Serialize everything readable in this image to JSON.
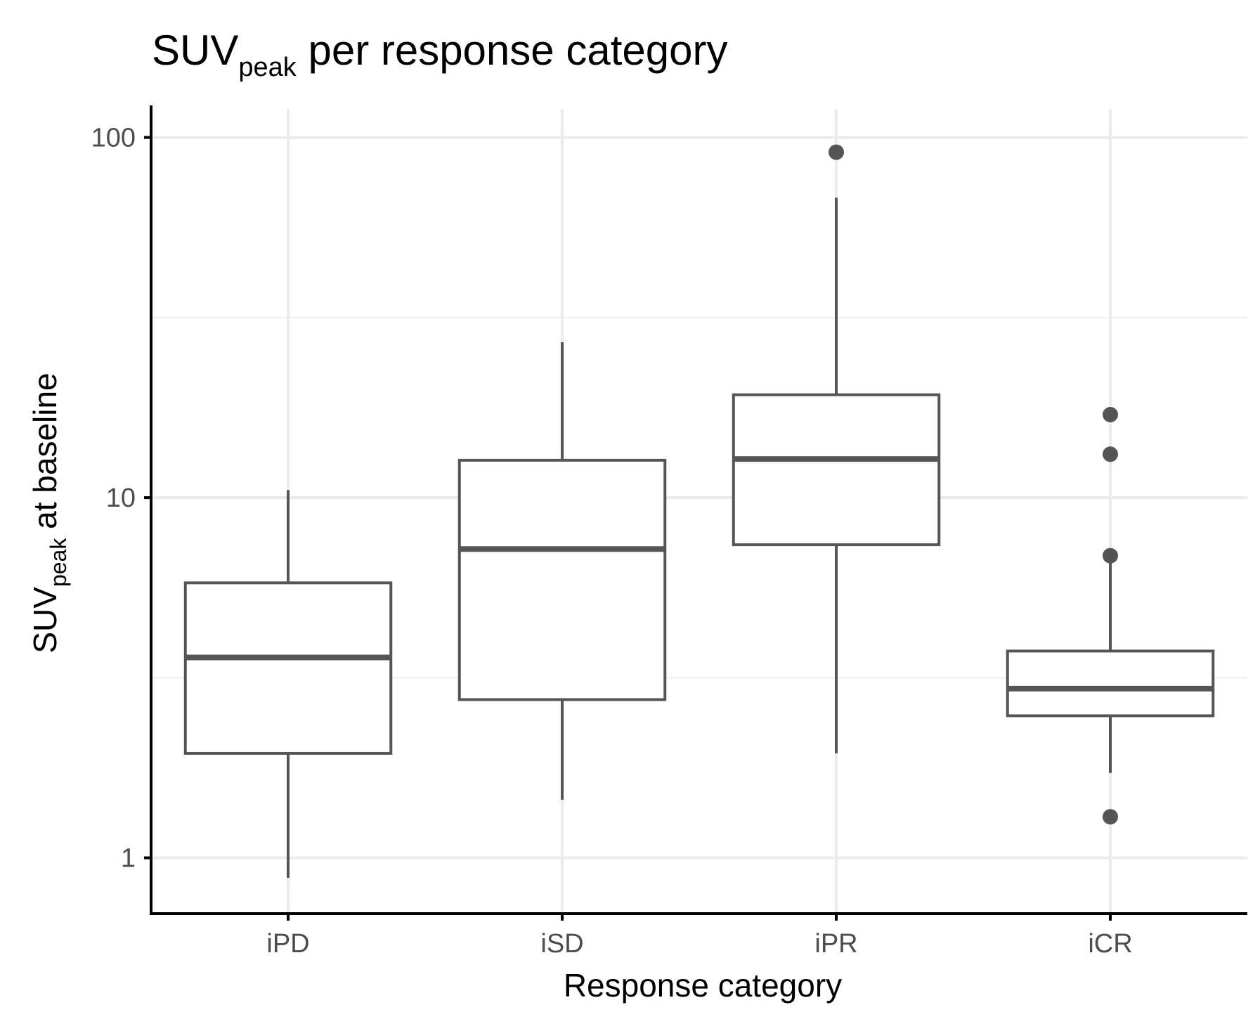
{
  "chart_data": {
    "type": "boxplot",
    "title": {
      "main": "SUV",
      "sub": "peak",
      "rest": " per response category"
    },
    "xlabel": "Response category",
    "ylabel": {
      "main": "SUV",
      "sub": "peak",
      "rest": " at baseline"
    },
    "yscale": "log10",
    "ylim": [
      0.7,
      120
    ],
    "yticks": [
      1,
      10,
      100
    ],
    "ytick_labels": [
      "1",
      "10",
      "100"
    ],
    "categories": [
      "iPD",
      "iSD",
      "iPR",
      "iCR"
    ],
    "boxes": [
      {
        "category": "iPD",
        "whisker_low": 0.88,
        "q1": 1.95,
        "median": 3.6,
        "q3": 5.8,
        "whisker_high": 10.5,
        "outliers": []
      },
      {
        "category": "iSD",
        "whisker_low": 1.45,
        "q1": 2.75,
        "median": 7.2,
        "q3": 12.7,
        "whisker_high": 27,
        "outliers": []
      },
      {
        "category": "iPR",
        "whisker_low": 1.95,
        "q1": 7.4,
        "median": 12.8,
        "q3": 19.3,
        "whisker_high": 68,
        "outliers": [
          91
        ]
      },
      {
        "category": "iCR",
        "whisker_low": 1.72,
        "q1": 2.48,
        "median": 2.95,
        "q3": 3.75,
        "whisker_high": 6.8,
        "outliers": [
          17,
          13.2,
          6.9,
          1.3
        ]
      }
    ],
    "colors": {
      "box_stroke": "#555555",
      "box_fill": "#ffffff",
      "grid": "#ebebeb",
      "axis": "#000000",
      "tick_text": "#4d4d4d"
    }
  }
}
